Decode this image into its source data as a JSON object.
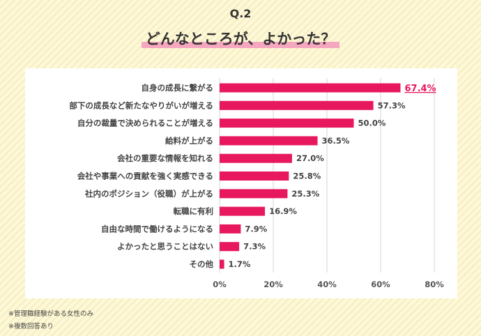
{
  "header": {
    "question": "Q.2",
    "title": "どんなところが、よかった？"
  },
  "notes": [
    "※管理職経験がある女性のみ",
    "※複数回答あり"
  ],
  "colors": {
    "bar": "#e8185f",
    "highlight_text": "#e8185f",
    "title_underline": "#f6a7c0"
  },
  "chart_data": {
    "type": "bar",
    "orientation": "horizontal",
    "categories": [
      "自身の成長に繋がる",
      "部下の成長など新たなやりがいが増える",
      "自分の裁量で決められることが増える",
      "給料が上がる",
      "会社の重要な情報を知れる",
      "会社や事業への貢献を強く実感できる",
      "社内のポジション（役職）が上がる",
      "転職に有利",
      "自由な時間で働けるようになる",
      "よかったと思うことはない",
      "その他"
    ],
    "values": [
      67.4,
      57.3,
      50.0,
      36.5,
      27.0,
      25.8,
      25.3,
      16.9,
      7.9,
      7.3,
      1.7
    ],
    "value_labels": [
      "67.4%",
      "57.3%",
      "50.0%",
      "36.5%",
      "27.0%",
      "25.8%",
      "25.3%",
      "16.9%",
      "7.9%",
      "7.3%",
      "1.7%"
    ],
    "highlight_index": 0,
    "xlim": [
      0,
      80
    ],
    "xticks": [
      "0%",
      "20%",
      "40%",
      "60%",
      "80%"
    ],
    "grid": true
  }
}
